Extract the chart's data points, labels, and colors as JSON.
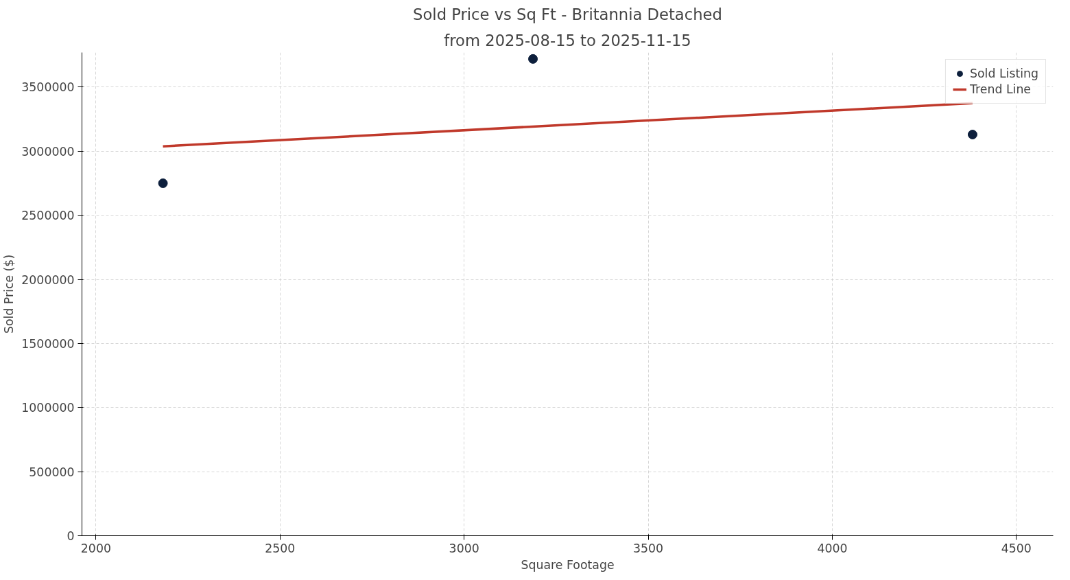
{
  "chart_data": {
    "type": "scatter",
    "title": "Sold Price vs Sq Ft - Britannia Detached",
    "subtitle": "from 2025-08-15 to 2025-11-15",
    "xlabel": "Square Footage",
    "ylabel": "Sold Price ($)",
    "xlim": [
      1962,
      4600
    ],
    "xticks": [
      2000,
      2500,
      3000,
      3500,
      4000,
      4500
    ],
    "ylim": [
      0,
      3770000
    ],
    "yticks": [
      0,
      500000,
      1000000,
      1500000,
      2000000,
      2500000,
      3000000,
      3500000
    ],
    "grid": true,
    "legend": "top right",
    "series": [
      {
        "name": "Sold Listing",
        "marker": "circle",
        "color": "#0d1f3c",
        "x": [
          2182,
          3187,
          4381
        ],
        "values": [
          2750000,
          3720000,
          3130000
        ]
      },
      {
        "name": "Trend Line",
        "type": "line",
        "color": "#c0392b",
        "line_style": "solid",
        "x": [
          2182,
          4381
        ],
        "values": [
          3038000,
          3375000
        ]
      }
    ]
  }
}
